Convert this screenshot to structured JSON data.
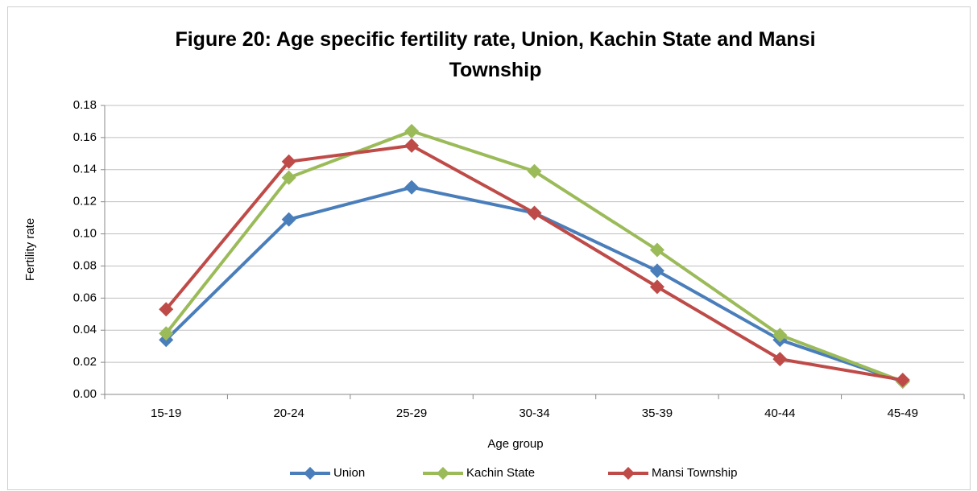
{
  "chart_data": {
    "type": "line",
    "title": "Figure 20: Age specific fertility rate, Union, Kachin State and Mansi Township",
    "x_label": "Age group",
    "y_label": "Fertility rate",
    "categories": [
      "15-19",
      "20-24",
      "25-29",
      "30-34",
      "35-39",
      "40-44",
      "45-49"
    ],
    "series": [
      {
        "name": "Union",
        "color": "#4a7ebb",
        "values": [
          0.034,
          0.109,
          0.129,
          0.113,
          0.077,
          0.034,
          0.008
        ]
      },
      {
        "name": "Kachin State",
        "color": "#9bbb59",
        "values": [
          0.038,
          0.135,
          0.164,
          0.139,
          0.09,
          0.037,
          0.008
        ]
      },
      {
        "name": "Mansi Township",
        "color": "#be4b48",
        "values": [
          0.053,
          0.145,
          0.155,
          0.113,
          0.067,
          0.022,
          0.009
        ]
      }
    ],
    "ylim": [
      0,
      0.18
    ],
    "yticks": [
      {
        "value": 0,
        "label": "0.00"
      },
      0.02,
      0.04,
      0.06,
      0.08,
      {
        "value": 0.1,
        "label": "0.10"
      },
      0.12,
      0.14,
      0.16,
      0.18
    ],
    "grid": true,
    "legend": "bottom"
  }
}
